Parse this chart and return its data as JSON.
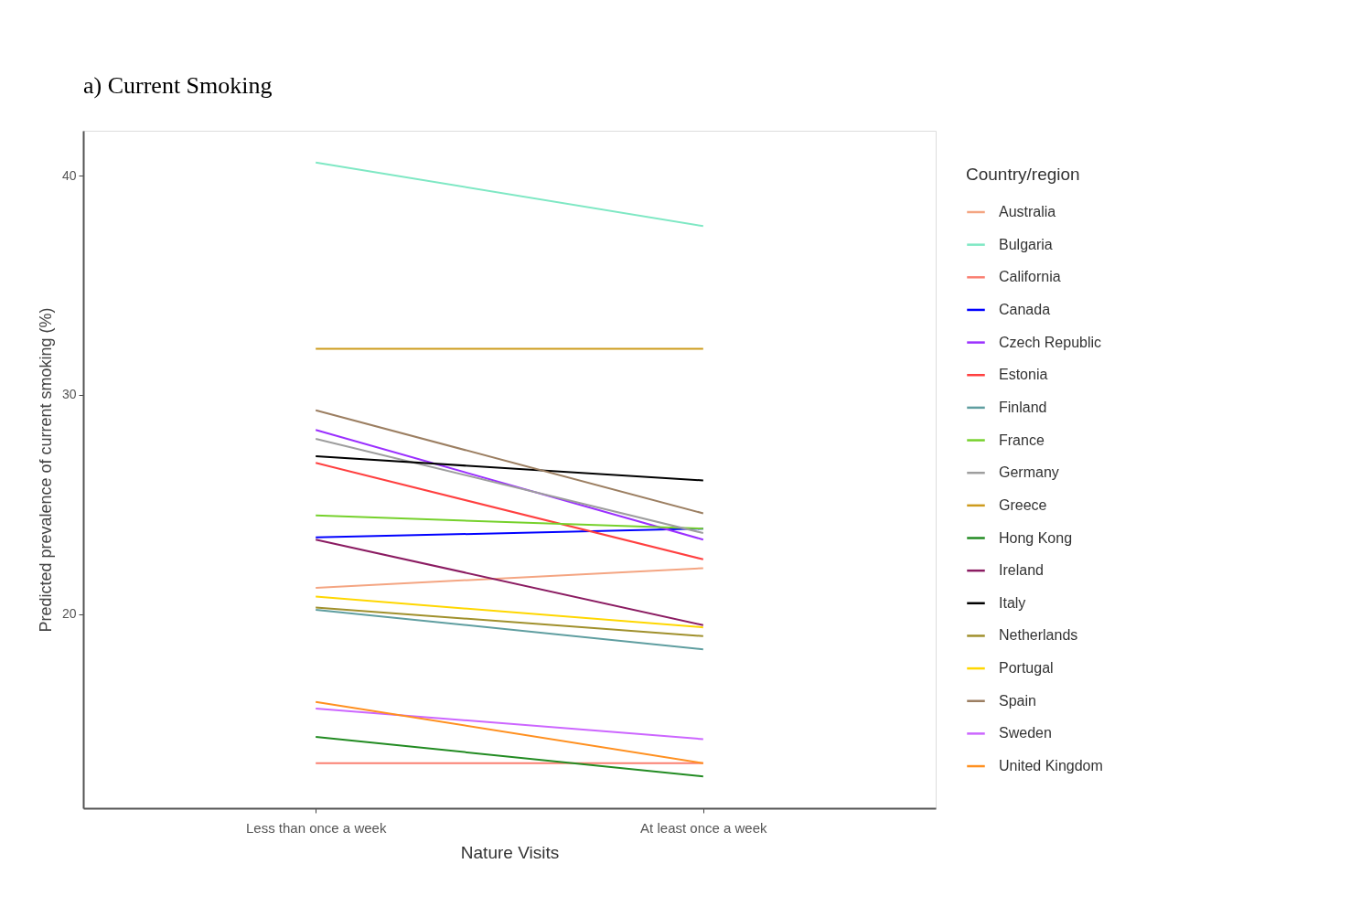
{
  "chart_data": {
    "type": "line",
    "title": "a) Current Smoking",
    "xlabel": "Nature Visits",
    "ylabel": "Predicted prevalence of current smoking (%)",
    "legend_title": "Country/region",
    "categories": [
      "Less than once a week",
      "At least once a week"
    ],
    "ylim": [
      11.15,
      42.05
    ],
    "yticks": [
      20,
      30,
      40
    ],
    "grid": false,
    "legend": "right",
    "line_style": "solid",
    "series": [
      {
        "name": "Australia",
        "color": "#f4a582",
        "values": [
          21.2,
          22.1
        ]
      },
      {
        "name": "Bulgaria",
        "color": "#7fe8c4",
        "values": [
          40.6,
          37.7
        ]
      },
      {
        "name": "California",
        "color": "#fa8072",
        "values": [
          13.2,
          13.2
        ]
      },
      {
        "name": "Canada",
        "color": "#0000ff",
        "values": [
          23.5,
          23.9
        ]
      },
      {
        "name": "Czech Republic",
        "color": "#9b30ff",
        "values": [
          28.4,
          23.4
        ]
      },
      {
        "name": "Estonia",
        "color": "#ff4040",
        "values": [
          26.9,
          22.5
        ]
      },
      {
        "name": "Finland",
        "color": "#5f9ea0",
        "values": [
          20.2,
          18.4
        ]
      },
      {
        "name": "France",
        "color": "#76d12c",
        "values": [
          24.5,
          23.9
        ]
      },
      {
        "name": "Germany",
        "color": "#9e9e9e",
        "values": [
          28.0,
          23.7
        ]
      },
      {
        "name": "Greece",
        "color": "#cd9b1d",
        "values": [
          32.1,
          32.1
        ]
      },
      {
        "name": "Hong Kong",
        "color": "#228b22",
        "values": [
          14.4,
          12.6
        ]
      },
      {
        "name": "Ireland",
        "color": "#8b1c62",
        "values": [
          23.4,
          19.5
        ]
      },
      {
        "name": "Italy",
        "color": "#000000",
        "values": [
          27.2,
          26.1
        ]
      },
      {
        "name": "Netherlands",
        "color": "#a0902c",
        "values": [
          20.3,
          19.0
        ]
      },
      {
        "name": "Portugal",
        "color": "#ffd700",
        "values": [
          20.8,
          19.4
        ]
      },
      {
        "name": "Spain",
        "color": "#9c7f62",
        "values": [
          29.3,
          24.6
        ]
      },
      {
        "name": "Sweden",
        "color": "#cc66ff",
        "values": [
          15.7,
          14.3
        ]
      },
      {
        "name": "United Kingdom",
        "color": "#ff9020",
        "values": [
          16.0,
          13.2
        ]
      }
    ]
  }
}
